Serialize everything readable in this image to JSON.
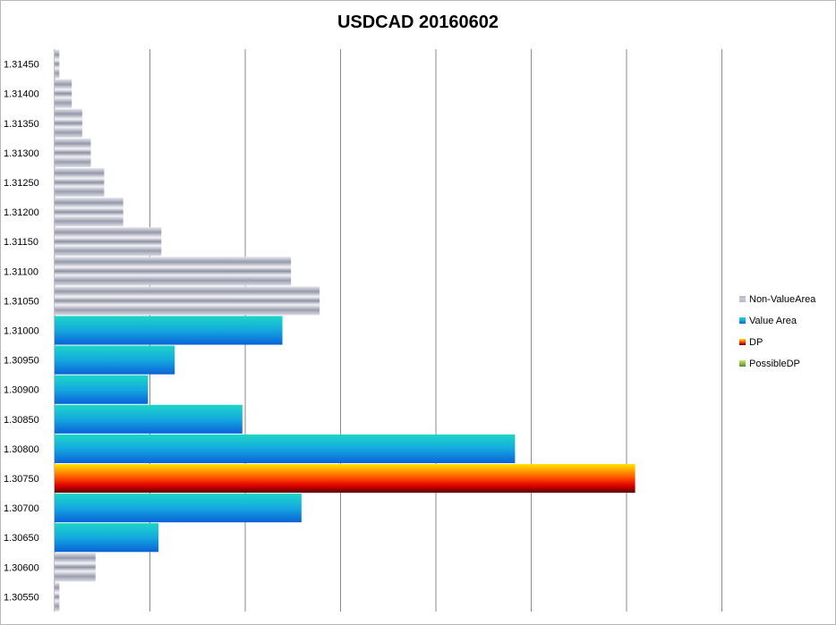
{
  "chart_data": {
    "type": "bar",
    "orientation": "horizontal",
    "title": "USDCAD 20160602",
    "xlabel": "",
    "ylabel": "",
    "xlim": [
      0,
      7
    ],
    "grid": true,
    "legend_position": "right",
    "categories": [
      "1.31450",
      "1.31400",
      "1.31350",
      "1.31300",
      "1.31250",
      "1.31200",
      "1.31150",
      "1.31100",
      "1.31050",
      "1.31000",
      "1.30950",
      "1.30900",
      "1.30850",
      "1.30800",
      "1.30750",
      "1.30700",
      "1.30650",
      "1.30600",
      "1.30550"
    ],
    "values": [
      0.05,
      0.18,
      0.29,
      0.38,
      0.52,
      0.72,
      1.12,
      2.48,
      2.78,
      2.39,
      1.26,
      0.98,
      1.97,
      4.83,
      6.09,
      2.59,
      1.09,
      0.43,
      0.05
    ],
    "bar_series": [
      "Non-ValueArea",
      "Non-ValueArea",
      "Non-ValueArea",
      "Non-ValueArea",
      "Non-ValueArea",
      "Non-ValueArea",
      "Non-ValueArea",
      "Non-ValueArea",
      "Non-ValueArea",
      "Value Area",
      "Value Area",
      "Value Area",
      "Value Area",
      "Value Area",
      "DP",
      "Value Area",
      "Value Area",
      "Non-ValueArea",
      "Non-ValueArea"
    ],
    "series": [
      {
        "name": "Non-ValueArea",
        "color": "#a4a7b6"
      },
      {
        "name": "Value Area",
        "color": "#1aa6de"
      },
      {
        "name": "DP",
        "color": "#ff2a00"
      },
      {
        "name": "PossibleDP",
        "color": "#8dc63f"
      }
    ]
  }
}
